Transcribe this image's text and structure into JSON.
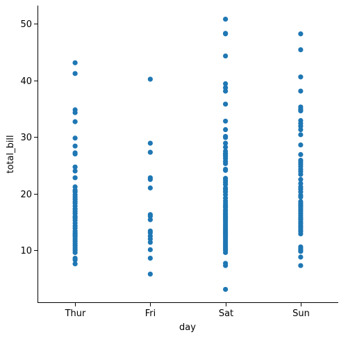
{
  "chart_data": {
    "type": "scatter",
    "title": "",
    "xlabel": "day",
    "ylabel": "total_bill",
    "categories": [
      "Thur",
      "Fri",
      "Sat",
      "Sun"
    ],
    "ylim": [
      0.7,
      53.2
    ],
    "yticks": [
      10,
      20,
      30,
      40,
      50
    ],
    "grid": false,
    "legend": "none",
    "marker_color": "#1f77b4",
    "series": [
      {
        "category": "Thur",
        "values": [
          43.1,
          41.2,
          34.8,
          34.3,
          32.7,
          29.8,
          28.4,
          27.2,
          27.0,
          24.7,
          24.0,
          22.8,
          21.2,
          20.6,
          20.3,
          19.8,
          19.4,
          19.0,
          18.6,
          18.3,
          17.8,
          17.3,
          16.9,
          16.5,
          16.0,
          15.7,
          15.3,
          14.8,
          14.3,
          13.9,
          13.4,
          13.0,
          12.7,
          12.4,
          12.0,
          11.6,
          11.2,
          10.8,
          10.4,
          10.0,
          9.6,
          8.6,
          8.3,
          7.6
        ]
      },
      {
        "category": "Fri",
        "values": [
          40.2,
          28.9,
          27.3,
          22.8,
          22.5,
          21.0,
          16.3,
          16.0,
          15.4,
          13.4,
          13.1,
          12.5,
          12.0,
          11.4,
          10.1,
          8.6,
          5.8
        ]
      },
      {
        "category": "Sat",
        "values": [
          50.8,
          48.3,
          48.2,
          44.3,
          39.4,
          38.7,
          38.1,
          35.8,
          32.8,
          31.3,
          30.1,
          29.9,
          28.9,
          28.2,
          27.5,
          27.1,
          26.9,
          26.6,
          26.2,
          25.7,
          25.3,
          24.3,
          24.1,
          22.7,
          22.4,
          22.0,
          21.6,
          21.0,
          20.7,
          20.3,
          19.8,
          19.2,
          18.7,
          18.3,
          17.9,
          17.6,
          17.2,
          16.9,
          16.6,
          16.3,
          16.0,
          15.7,
          15.4,
          15.1,
          14.8,
          14.5,
          14.2,
          13.9,
          13.6,
          13.3,
          13.0,
          12.7,
          12.4,
          12.1,
          11.8,
          11.5,
          11.2,
          10.9,
          10.6,
          10.3,
          10.0,
          9.6,
          7.7,
          7.3,
          3.1
        ]
      },
      {
        "category": "Sun",
        "values": [
          48.2,
          45.4,
          40.6,
          38.1,
          35.3,
          34.9,
          34.6,
          32.9,
          32.4,
          31.9,
          31.3,
          30.4,
          28.6,
          26.9,
          25.9,
          25.6,
          25.2,
          24.8,
          24.3,
          23.9,
          23.4,
          22.5,
          21.8,
          21.2,
          20.8,
          20.3,
          19.7,
          19.4,
          18.6,
          18.3,
          18.0,
          17.8,
          17.5,
          17.2,
          16.9,
          16.5,
          16.1,
          15.7,
          15.4,
          15.0,
          14.7,
          14.3,
          14.0,
          13.6,
          13.3,
          12.9,
          10.6,
          10.3,
          10.0,
          9.8,
          8.8,
          7.3
        ]
      }
    ]
  }
}
